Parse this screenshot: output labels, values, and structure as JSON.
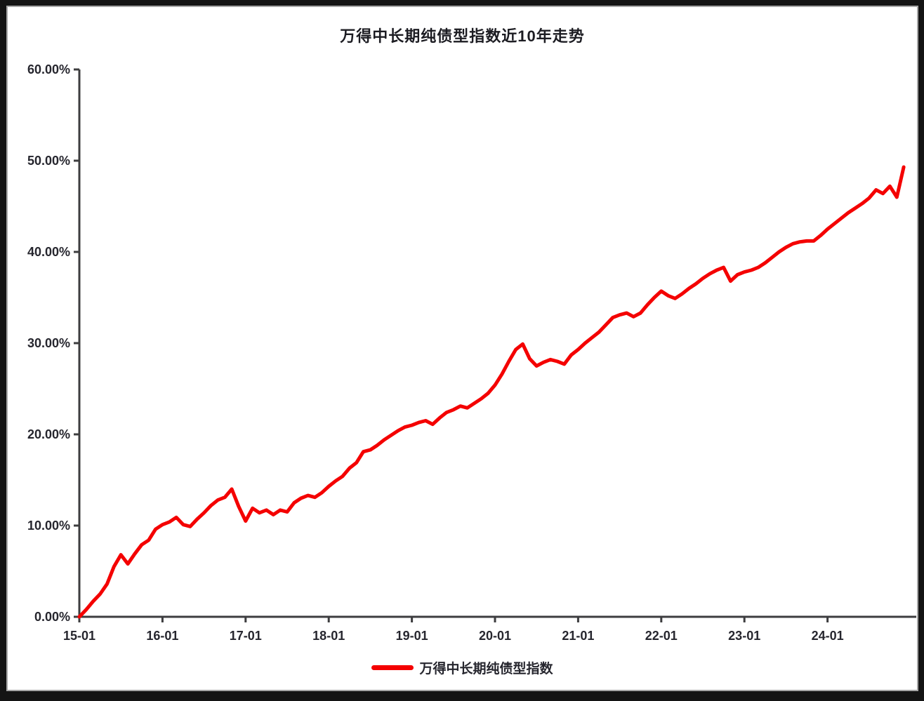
{
  "window": {
    "background_color": "#141414",
    "panel_color": "#ffffff",
    "panel_border_color": "#a6a6a6"
  },
  "chart_data": {
    "type": "line",
    "title": "万得中长期纯债型指数近10年走势",
    "xlabel": "",
    "ylabel": "",
    "grid": "off",
    "axis_color": "#3d3d3f",
    "text_color": "#26262e",
    "line_color": "#f40000",
    "ylim": [
      0,
      60
    ],
    "y_axis": {
      "tick_values": [
        0,
        10,
        20,
        30,
        40,
        50,
        60
      ],
      "tick_labels": [
        "0.00%",
        "10.00%",
        "20.00%",
        "30.00%",
        "40.00%",
        "50.00%",
        "60.00%"
      ]
    },
    "x_axis": {
      "tick_month_indices": [
        0,
        12,
        24,
        36,
        48,
        60,
        72,
        84,
        96,
        108
      ],
      "tick_labels": [
        "15-01",
        "16-01",
        "17-01",
        "18-01",
        "19-01",
        "20-01",
        "21-01",
        "22-01",
        "23-01",
        "24-01"
      ]
    },
    "legend": {
      "position": "bottom-center",
      "items": [
        {
          "label": "万得中长期纯债型指数",
          "color": "#f40000"
        }
      ]
    },
    "series": [
      {
        "name": "万得中长期纯债型指数",
        "color": "#f40000",
        "unit": "%",
        "x_start": "2015-01",
        "x_freq": "monthly",
        "values": [
          0.0,
          0.8,
          1.7,
          2.5,
          3.6,
          5.5,
          6.8,
          5.8,
          6.9,
          7.9,
          8.4,
          9.6,
          10.1,
          10.4,
          10.9,
          10.1,
          9.9,
          10.7,
          11.4,
          12.2,
          12.8,
          13.1,
          14.0,
          12.1,
          10.5,
          11.9,
          11.4,
          11.7,
          11.2,
          11.7,
          11.5,
          12.5,
          13.0,
          13.3,
          13.1,
          13.6,
          14.3,
          14.9,
          15.4,
          16.3,
          16.9,
          18.1,
          18.3,
          18.8,
          19.4,
          19.9,
          20.4,
          20.8,
          21.0,
          21.3,
          21.5,
          21.1,
          21.8,
          22.4,
          22.7,
          23.1,
          22.9,
          23.4,
          23.9,
          24.5,
          25.4,
          26.6,
          28.0,
          29.3,
          29.9,
          28.3,
          27.5,
          27.9,
          28.2,
          28.0,
          27.7,
          28.7,
          29.3,
          30.0,
          30.6,
          31.2,
          32.0,
          32.8,
          33.1,
          33.3,
          32.9,
          33.3,
          34.2,
          35.0,
          35.7,
          35.2,
          34.9,
          35.4,
          36.0,
          36.5,
          37.1,
          37.6,
          38.0,
          38.3,
          36.8,
          37.5,
          37.8,
          38.0,
          38.3,
          38.8,
          39.4,
          40.0,
          40.5,
          40.9,
          41.1,
          41.2,
          41.2,
          41.8,
          42.5,
          43.1,
          43.7,
          44.3,
          44.8,
          45.3,
          45.9,
          46.8,
          46.4,
          47.2,
          46.0,
          49.3
        ]
      }
    ]
  }
}
